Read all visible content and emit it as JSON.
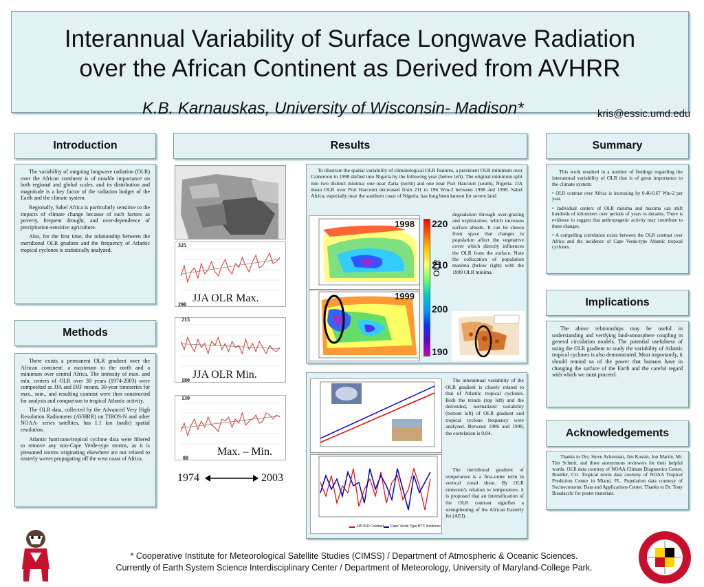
{
  "header": {
    "title_line1": "Interannual Variability of Surface Longwave Radiation",
    "title_line2": "over the African Continent as Derived from AVHRR",
    "author": "K.B. Karnauskas, University of Wisconsin- Madison*",
    "email": "kris@essic.umd.edu"
  },
  "sections": {
    "introduction": "Introduction",
    "methods": "Methods",
    "results": "Results",
    "summary": "Summary",
    "implications": "Implications",
    "acknowledgements": "Acknowledgements"
  },
  "introduction": {
    "p1": "The variability of outgoing longwave radiation (OLR) over the African continent is of notable importance on both regional and global scales, and its distribution and magnitude is a key factor of the radiation budget of the Earth and the climate system.",
    "p2": "Regionally, Sahel Africa is particularly sensitive to the impacts of climate change because of such factors as poverty, frequent drought, and over-dependence of precipitation-sensitive agriculture.",
    "p3": "Also, for the first time, the relationship between the meridional OLR gradient and the frequency of Atlantic tropical cyclones is statistically analyzed."
  },
  "methods": {
    "p1": "There exists a permanent OLR gradient over the African continent: a maximum to the north and a minimum over central Africa. The intensity of max. and min. centers of OLR over 30 years (1974-2003) were composited as JJA and DJF means. 30-year timeseries for max., min., and resulting contrast were then constructed for analysis and comparison to tropical Atlantic activity.",
    "p2": "The OLR data, collected by the Advanced Very High Resolution Radiometer (AVHRR) on TIROS-N and other NOAA- series satellites, has 1.1 km (nadir) spatial resolution.",
    "p3": "Atlantic hurricane/tropical cyclone data were filtered to remove any non-Cape Verde-type storms, as it is presumed storms originating elsewhere are not related to easterly waves propagating off the west coast of Africa."
  },
  "timeseries": {
    "max_label": "JJA OLR Max.",
    "min_label": "JJA OLR Min.",
    "diff_label": "Max. – Min.",
    "max_top": "325",
    "max_bottom": "290",
    "min_top": "215",
    "min_bottom": "180",
    "diff_top": "130",
    "diff_bottom": "80",
    "year_start": "1974",
    "year_end": "2003",
    "max_values": [
      0.35,
      0.6,
      0.2,
      0.45,
      0.55,
      0.3,
      0.65,
      0.4,
      0.5,
      0.7,
      0.45,
      0.35,
      0.6,
      0.75,
      0.5,
      0.4,
      0.65,
      0.55,
      0.8,
      0.6,
      0.45,
      0.7,
      0.85,
      0.55,
      0.6,
      0.75,
      0.9,
      0.65,
      0.7,
      0.8
    ],
    "min_values": [
      0.6,
      0.4,
      0.7,
      0.5,
      0.35,
      0.65,
      0.45,
      0.55,
      0.3,
      0.6,
      0.5,
      0.7,
      0.4,
      0.55,
      0.35,
      0.6,
      0.45,
      0.5,
      0.3,
      0.65,
      0.4,
      0.55,
      0.35,
      0.6,
      0.45,
      0.3,
      0.5,
      0.4,
      0.35,
      0.45
    ],
    "diff_values": [
      0.3,
      0.5,
      0.2,
      0.45,
      0.6,
      0.35,
      0.55,
      0.4,
      0.65,
      0.45,
      0.4,
      0.3,
      0.6,
      0.55,
      0.65,
      0.4,
      0.6,
      0.5,
      0.75,
      0.45,
      0.55,
      0.6,
      0.7,
      0.5,
      0.55,
      0.75,
      0.7,
      0.6,
      0.7,
      0.65
    ]
  },
  "results": {
    "text_top": "To illustrate the spatial variability of climatological OLR features, a persistent OLR minimum over Cameroon in 1998 shifted into Nigeria by the following year (below left). The original minimum split into two distinct minima: one near Zaria (north) and one near Port Harcourt (south), Nigeria. JJA mean OLR over Port Harcourt decreased from 211 to 196 Wm-2 between 1998 and 1999. Sahel Africa, especially near the southern coast of Nigeria, has long been known for severe land",
    "text_side": "degradation through over-grazing and exploitation, which increases surface albedo. It can be shown from space that changes in population affect the vegetative cover which directly influences the OLR from the surface. Note the collocation of population maxima (below right) with the 1999 OLR minima.",
    "map_year1": "1998",
    "map_year2": "1999",
    "scale_top": "220",
    "scale_mid1": "210",
    "scale_mid2": "200",
    "scale_bottom": "190",
    "scale_label": "OLR",
    "cyclone_text1": "The interannual variability of the OLR gradient is closely related to that of Atlantic tropical cyclones. Both the trends (top left) and the detrended, normalized variability (bottom left) of OLR gradient and tropical cyclone frequency were analyzed. Between 1986 and 1998, the correlation is 0.84.",
    "cyclone_text2": "The meridional gradient of temperature is a first-order term in vertical zonal shear. By OLR emission's relation to temperature, it is proposed that an intensification of the OLR contrast signifies a strengthening of the African Easterly Jet (AEJ).",
    "legend_a": "JJA OLR Contrast",
    "legend_b": "Cape Verde Type HTC Incidence"
  },
  "summary": {
    "intro": "This work resulted in a number of findings regarding the interannual variability of OLR that is of great importance to the climate system:",
    "b1": "OLR contrast over Africa is increasing by 0.46-0.67 Wm-2 per year.",
    "b2": "Individual centers of OLR minima and maxima can shift hundreds of kilometers over periods of years to decades. There is evidence to suggest that anthropogenic activity may contribute to these changes.",
    "b3": "A compelling correlation exists between the OLR contrast over Africa and the incidence of Cape Verde-type Atlantic tropical cyclones."
  },
  "implications": {
    "p1": "The above relationships may be useful in understanding and verifying land-atmosphere coupling in general circulation models. The potential usefulness of using the OLR gradient to study the variability of Atlantic tropical cyclones is also demonstrated. Most importantly, it should remind us of the power that humans have in changing the surface of the Earth and the careful regard with which we must proceed."
  },
  "acknowledgements": {
    "p1": "Thanks to Drs. Steve Ackerman, Jim Kossin, Jon Martin, Mr. Tim Schmit, and three anonymous reviewers for their helpful words. OLR data courtesy of NOAA Climate Diagnostics Center, Boulder, CO. Tropical storm data courtesy of NOAA Tropical Prediction Center in Miami, FL. Population data courtesy of Socioeconomic Data and Applications Center. Thanks to Dr. Tony Busalacchi for poster materials."
  },
  "footer": {
    "line1": "* Cooperative Institute for Meteorological Satellite Studies (CIMSS) / Department of Atmospheric & Oceanic Sciences.",
    "line2": "Currently of Earth System Science Interdisciplinary Center / Department of Meteorology, University of Maryland-College Park."
  },
  "logos": {
    "umd_text": "UNIVERSITY OF MARYLAND",
    "umd_year_left": "18",
    "umd_year_right": "56"
  }
}
